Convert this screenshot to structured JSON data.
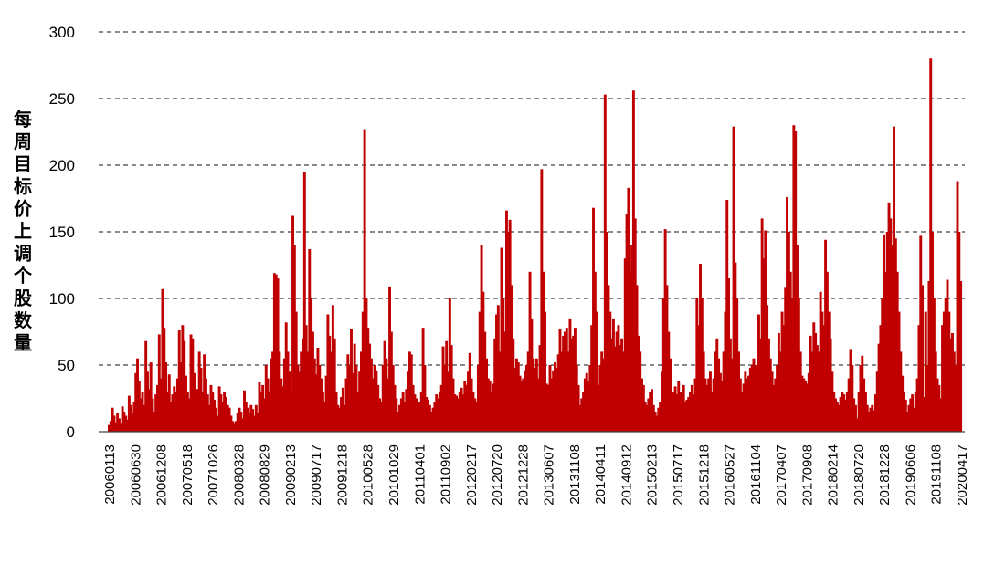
{
  "chart_data": {
    "type": "bar",
    "title": "",
    "xlabel": "",
    "ylabel": "每周目标价上调个股数量",
    "ylim": [
      0,
      300
    ],
    "yticks": [
      0,
      50,
      100,
      150,
      200,
      250,
      300
    ],
    "grid": true,
    "legend": "none",
    "color": "#C00000",
    "x_tick_labels": [
      "20060113",
      "20060630",
      "20061208",
      "20070518",
      "20071026",
      "20080328",
      "20080829",
      "20090213",
      "20090717",
      "20091218",
      "20100528",
      "20101029",
      "20110401",
      "20110902",
      "20120217",
      "20120720",
      "20121228",
      "20130607",
      "20131108",
      "20140411",
      "20140912",
      "20150213",
      "20150717",
      "20151218",
      "20160527",
      "20161104",
      "20170407",
      "20170908",
      "20180214",
      "20180720",
      "20181228",
      "20190606",
      "20191108",
      "20200417"
    ],
    "series": [
      {
        "values": [
          5,
          8,
          18,
          12,
          7,
          14,
          10,
          6,
          19,
          15,
          12,
          9,
          27,
          20,
          14,
          22,
          44,
          55,
          38,
          25,
          30,
          20,
          68,
          45,
          32,
          52,
          25,
          15,
          28,
          35,
          73,
          40,
          107,
          78,
          52,
          30,
          43,
          22,
          28,
          34,
          30,
          40,
          76,
          52,
          80,
          68,
          42,
          30,
          25,
          73,
          70,
          44,
          20,
          32,
          60,
          48,
          30,
          58,
          40,
          28,
          20,
          35,
          30,
          24,
          18,
          12,
          34,
          28,
          22,
          30,
          26,
          20,
          18,
          12,
          8,
          6,
          8,
          14,
          18,
          15,
          10,
          31,
          22,
          18,
          14,
          20,
          17,
          12,
          20,
          14,
          37,
          30,
          35,
          25,
          50,
          40,
          30,
          55,
          60,
          119,
          118,
          115,
          60,
          40,
          34,
          55,
          82,
          60,
          45,
          30,
          162,
          140,
          90,
          50,
          45,
          60,
          70,
          195,
          80,
          60,
          137,
          100,
          75,
          55,
          43,
          63,
          50,
          40,
          30,
          22,
          42,
          88,
          72,
          60,
          95,
          70,
          30,
          20,
          18,
          26,
          33,
          20,
          40,
          58,
          50,
          77,
          44,
          66,
          50,
          30,
          45,
          60,
          90,
          227,
          100,
          78,
          66,
          55,
          40,
          50,
          46,
          35,
          25,
          22,
          50,
          68,
          55,
          40,
          109,
          75,
          50,
          35,
          25,
          15,
          20,
          25,
          30,
          22,
          32,
          45,
          60,
          58,
          35,
          28,
          25,
          20,
          22,
          30,
          78,
          50,
          26,
          24,
          20,
          15,
          18,
          22,
          28,
          25,
          30,
          35,
          64,
          50,
          68,
          45,
          100,
          65,
          40,
          28,
          27,
          25,
          30,
          33,
          28,
          38,
          35,
          45,
          59,
          40,
          30,
          25,
          22,
          50,
          90,
          140,
          105,
          75,
          55,
          40,
          38,
          30,
          36,
          70,
          88,
          95,
          60,
          138,
          100,
          75,
          166,
          150,
          159,
          110,
          70,
          48,
          55,
          52,
          42,
          38,
          40,
          46,
          50,
          60,
          120,
          85,
          55,
          48,
          55,
          40,
          65,
          197,
          120,
          90,
          36,
          35,
          50,
          40,
          46,
          52,
          48,
          58,
          77,
          60,
          72,
          75,
          78,
          60,
          85,
          70,
          72,
          78,
          50,
          35,
          20,
          25,
          30,
          40,
          44,
          38,
          50,
          80,
          168,
          120,
          90,
          35,
          50,
          60,
          55,
          253,
          150,
          110,
          90,
          70,
          85,
          64,
          75,
          80,
          65,
          70,
          60,
          130,
          163,
          183,
          120,
          140,
          256,
          160,
          110,
          72,
          60,
          40,
          35,
          22,
          20,
          25,
          30,
          32,
          20,
          15,
          12,
          18,
          22,
          45,
          100,
          152,
          110,
          75,
          55,
          28,
          30,
          34,
          28,
          38,
          30,
          25,
          35,
          22,
          24,
          26,
          30,
          35,
          28,
          40,
          100,
          80,
          126,
          100,
          60,
          40,
          35,
          40,
          45,
          30,
          40,
          60,
          70,
          55,
          44,
          38,
          60,
          90,
          174,
          115,
          70,
          55,
          229,
          127,
          100,
          60,
          40,
          30,
          36,
          45,
          40,
          42,
          48,
          50,
          55,
          50,
          40,
          88,
          70,
          160,
          130,
          151,
          95,
          70,
          55,
          45,
          35,
          40,
          50,
          74,
          60,
          90,
          80,
          108,
          176,
          150,
          120,
          100,
          230,
          226,
          140,
          100,
          60,
          42,
          40,
          38,
          36,
          44,
          72,
          60,
          82,
          74,
          65,
          60,
          105,
          90,
          80,
          144,
          120,
          90,
          70,
          45,
          30,
          25,
          22,
          20,
          26,
          30,
          28,
          24,
          30,
          40,
          62,
          50,
          25,
          20,
          10,
          30,
          50,
          57,
          40,
          30,
          20,
          15,
          18,
          20,
          16,
          28,
          45,
          66,
          80,
          100,
          148,
          120,
          150,
          172,
          160,
          140,
          229,
          145,
          120,
          90,
          60,
          42,
          30,
          24,
          15,
          20,
          25,
          28,
          18,
          30,
          40,
          80,
          147,
          110,
          26,
          90,
          50,
          113,
          280,
          150,
          100,
          60,
          40,
          35,
          25,
          80,
          90,
          100,
          114,
          90,
          70,
          74,
          60,
          50,
          188,
          150,
          113
        ]
      }
    ]
  }
}
